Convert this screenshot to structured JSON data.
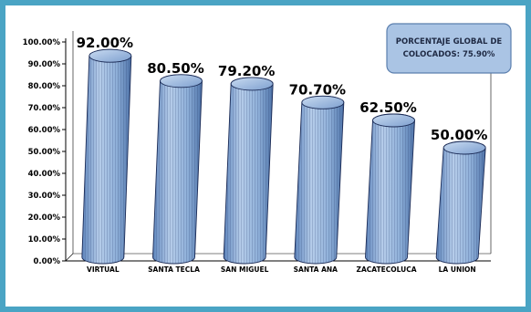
{
  "chart_data": {
    "type": "bar",
    "style": "3d-cylinder",
    "categories": [
      "VIRTUAL",
      "SANTA TECLA",
      "SAN MIGUEL",
      "SANTA ANA",
      "ZACATECOLUCA",
      "LA UNION"
    ],
    "values": [
      92.0,
      80.5,
      79.2,
      70.7,
      62.5,
      50.0
    ],
    "data_labels": [
      "92.00%",
      "80.50%",
      "79.20%",
      "70.70%",
      "62.50%",
      "50.00%"
    ],
    "yticks": [
      "0.00%",
      "10.00%",
      "20.00%",
      "30.00%",
      "40.00%",
      "50.00%",
      "60.00%",
      "70.00%",
      "80.00%",
      "90.00%",
      "100.00%"
    ],
    "ylim": [
      0,
      100
    ],
    "grid": false,
    "bar_color": "#8fb3dc",
    "bar_edge_color": "#1a2a55",
    "annotation": {
      "line1": "PORCENTAJE GLOBAL DE",
      "line2": "COLOCADOS: 75.90%"
    }
  },
  "colors": {
    "frame_border": "#4aa4c4",
    "note_fill": "#aac4e4",
    "note_border": "#5b7fae"
  }
}
